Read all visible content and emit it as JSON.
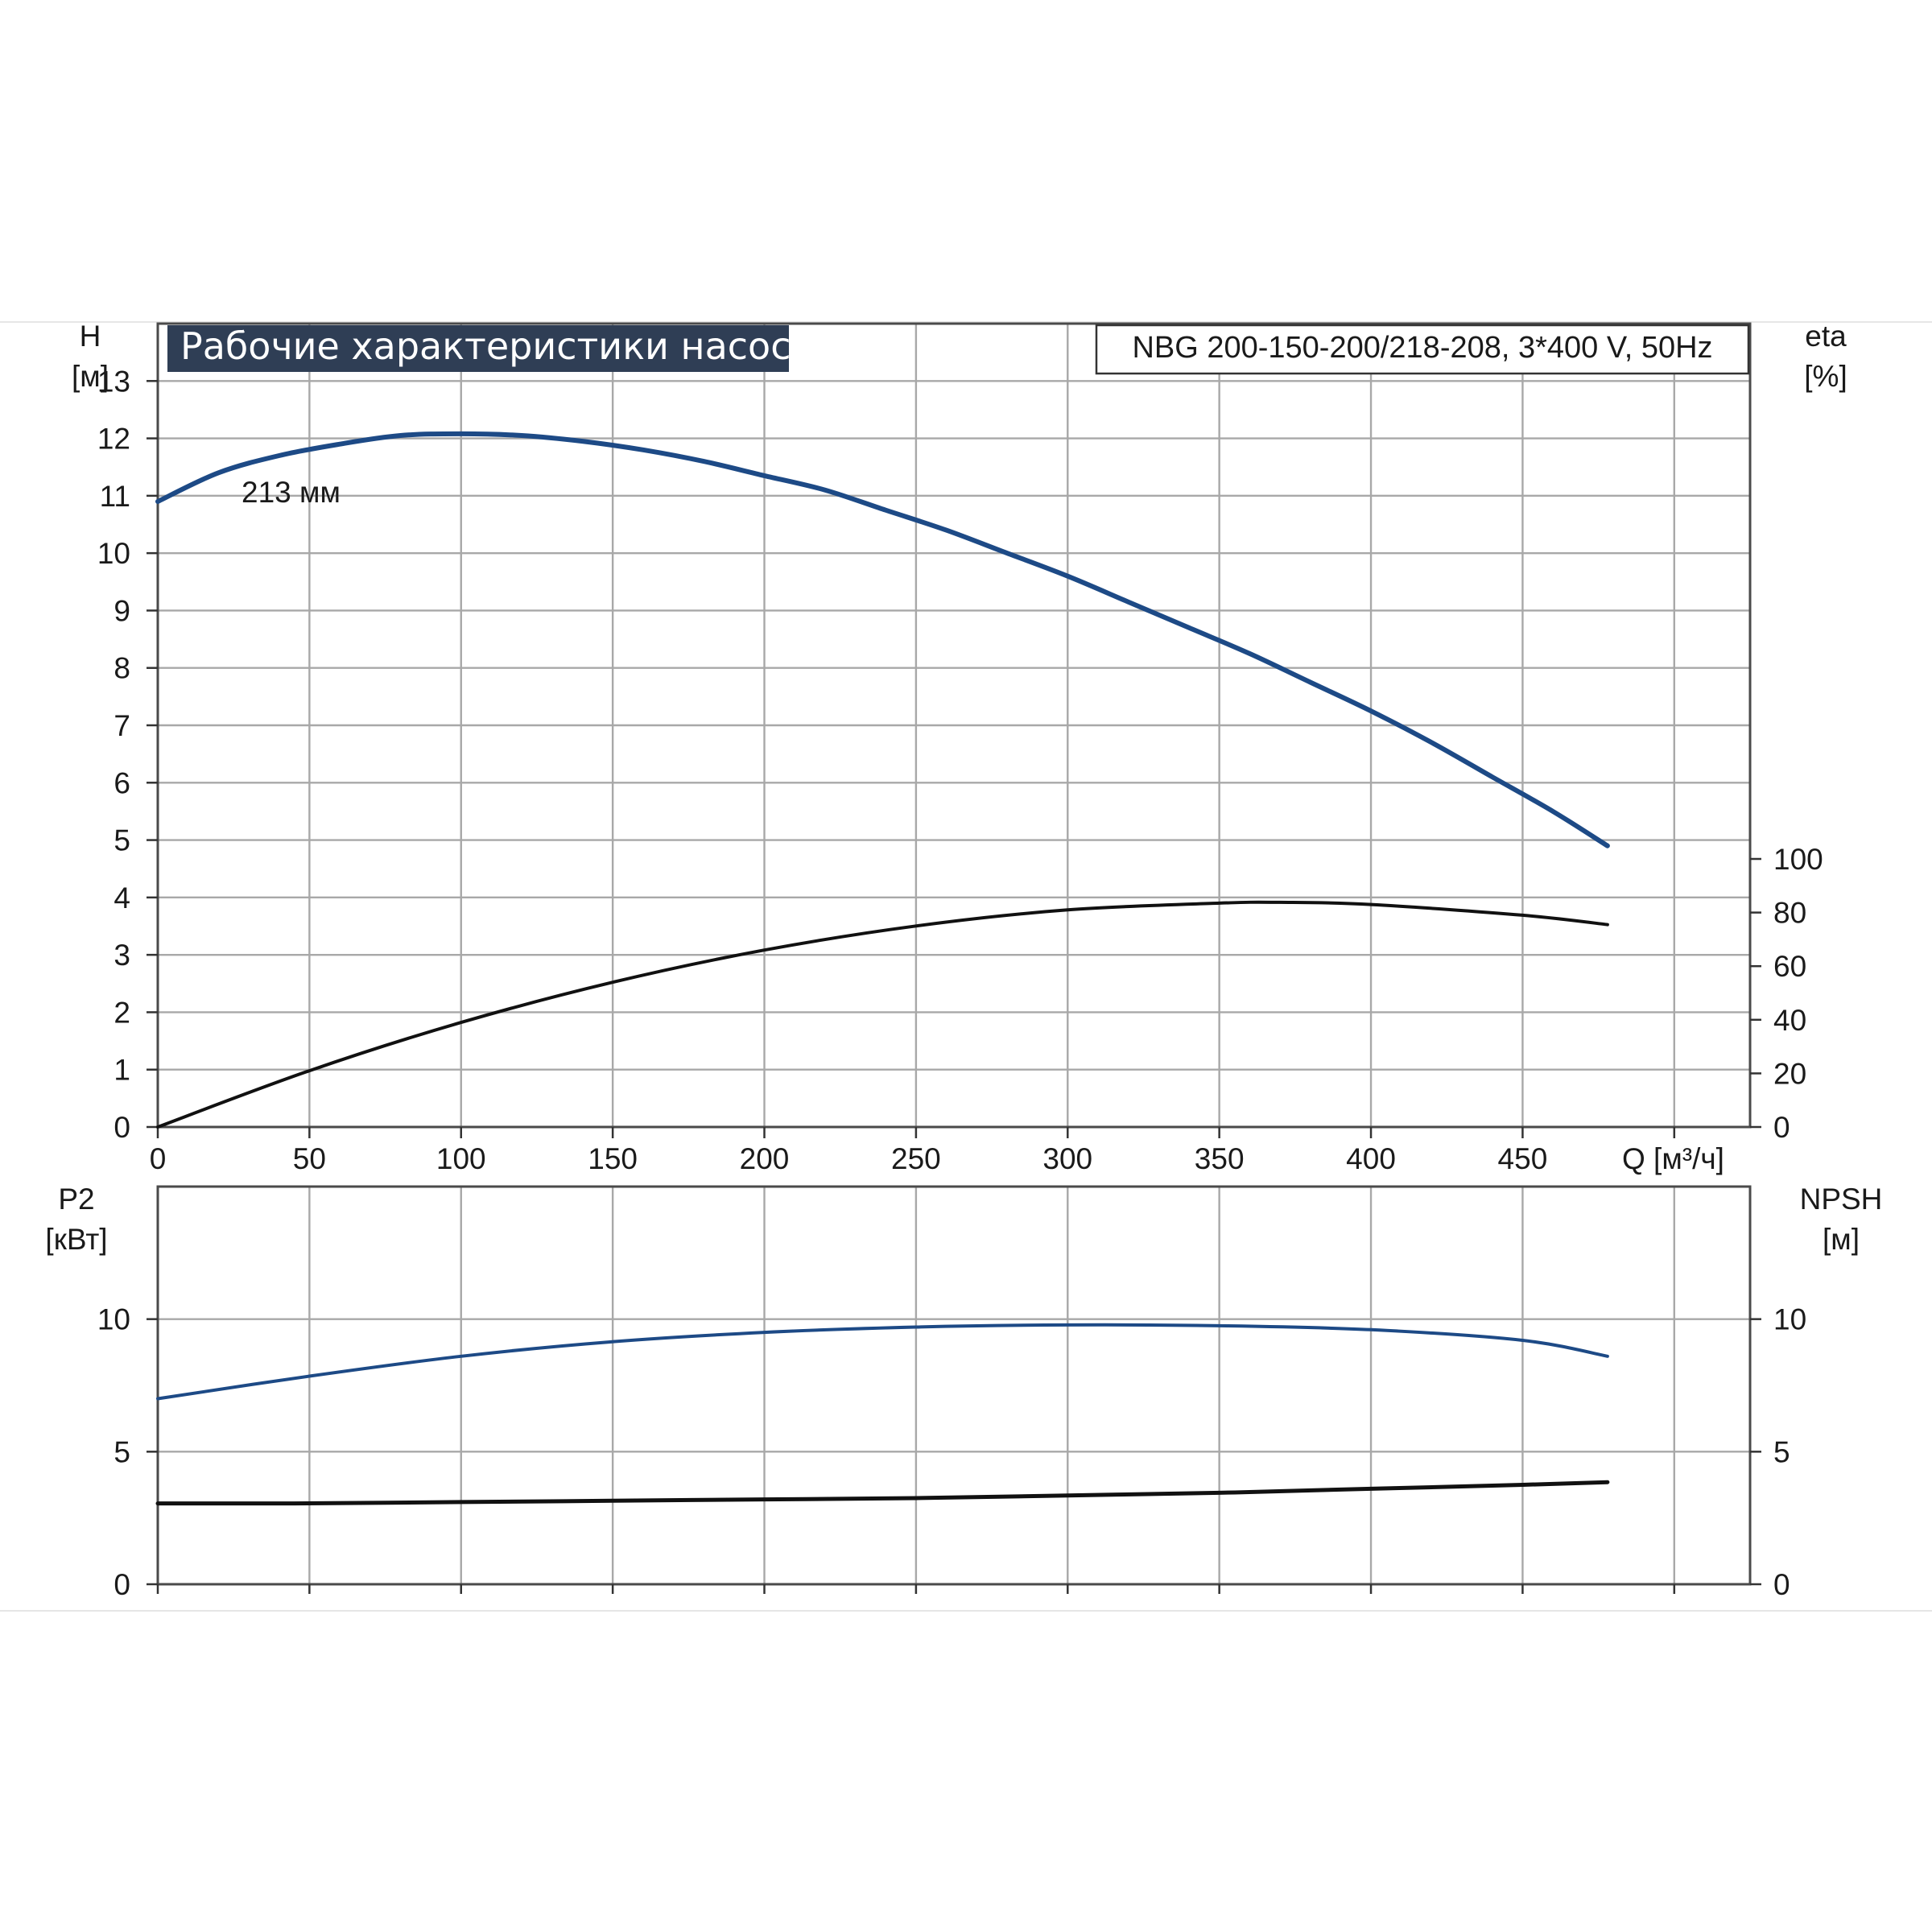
{
  "header": {
    "title": "Рабочие характеристики насоса",
    "model": "NBG 200-150-200/218-208, 3*400 V, 50Hz"
  },
  "colors": {
    "title_bg": "#2f3e55",
    "title_fg": "#ffffff",
    "blue_curve": "#1d4a86",
    "black_curve": "#111111",
    "grid": "#a8a8a8"
  },
  "chart_data": [
    {
      "type": "line",
      "panel": "top",
      "x_axis": {
        "label": "Q [м³/ч]",
        "range": [
          0,
          525
        ],
        "ticks": [
          0,
          50,
          100,
          150,
          200,
          250,
          300,
          350,
          400,
          450
        ],
        "tick_labels": [
          "0",
          "50",
          "100",
          "150",
          "200",
          "250",
          "300",
          "350",
          "400",
          "450"
        ]
      },
      "y_left": {
        "label": [
          "H",
          "[м]"
        ],
        "range": [
          0,
          14
        ],
        "ticks": [
          0,
          1,
          2,
          3,
          4,
          5,
          6,
          7,
          8,
          9,
          10,
          11,
          12,
          13
        ],
        "tick_labels": [
          "0",
          "1",
          "2",
          "3",
          "4",
          "5",
          "6",
          "7",
          "8",
          "9",
          "10",
          "11",
          "12",
          "13"
        ]
      },
      "y_right": {
        "label": [
          "eta",
          "[%]"
        ],
        "range": [
          0,
          100
        ],
        "ticks": [
          0,
          20,
          40,
          60,
          80,
          100
        ],
        "tick_labels": [
          "0",
          "20",
          "40",
          "60",
          "80",
          "100"
        ]
      },
      "grid": true,
      "series": [
        {
          "name": "213 мм",
          "axis": "left",
          "color": "#1d4a86",
          "x": [
            0,
            20,
            40,
            60,
            80,
            100,
            120,
            140,
            160,
            180,
            200,
            220,
            240,
            260,
            280,
            300,
            320,
            340,
            360,
            380,
            400,
            420,
            440,
            460,
            478
          ],
          "y": [
            10.9,
            11.4,
            11.7,
            11.9,
            12.05,
            12.08,
            12.05,
            11.95,
            11.8,
            11.6,
            11.35,
            11.1,
            10.75,
            10.4,
            10.0,
            9.6,
            9.15,
            8.7,
            8.25,
            7.75,
            7.25,
            6.7,
            6.1,
            5.5,
            4.9
          ]
        },
        {
          "axis": "right",
          "color": "#111111",
          "x": [
            0,
            50,
            100,
            150,
            200,
            250,
            300,
            350,
            370,
            400,
            450,
            478
          ],
          "y": [
            0,
            21,
            39,
            54,
            66,
            75,
            81,
            83.5,
            83.8,
            83,
            79,
            75.5
          ]
        }
      ]
    },
    {
      "type": "line",
      "panel": "bottom",
      "x_axis": {
        "range": [
          0,
          525
        ],
        "ticks": [
          0,
          50,
          100,
          150,
          200,
          250,
          300,
          350,
          400,
          450,
          500
        ]
      },
      "y_left": {
        "label": [
          "P2",
          "[кВт]"
        ],
        "range": [
          0,
          15
        ],
        "ticks": [
          0,
          5,
          10
        ],
        "tick_labels": [
          "0",
          "5",
          "10"
        ]
      },
      "y_right": {
        "label": [
          "NPSH",
          "[м]"
        ],
        "range": [
          0,
          15
        ],
        "ticks": [
          0,
          5,
          10
        ],
        "tick_labels": [
          "0",
          "5",
          "10"
        ]
      },
      "grid": true,
      "series": [
        {
          "axis": "left",
          "color": "#1d4a86",
          "x": [
            0,
            50,
            100,
            150,
            200,
            250,
            300,
            350,
            400,
            450,
            478
          ],
          "y": [
            7.0,
            7.85,
            8.6,
            9.15,
            9.5,
            9.7,
            9.78,
            9.75,
            9.6,
            9.2,
            8.6
          ]
        },
        {
          "axis": "right",
          "color": "#111111",
          "x": [
            0,
            45,
            100,
            150,
            200,
            250,
            300,
            350,
            400,
            450,
            478
          ],
          "y": [
            3.05,
            3.05,
            3.1,
            3.15,
            3.2,
            3.25,
            3.35,
            3.45,
            3.6,
            3.75,
            3.85
          ]
        }
      ]
    }
  ]
}
